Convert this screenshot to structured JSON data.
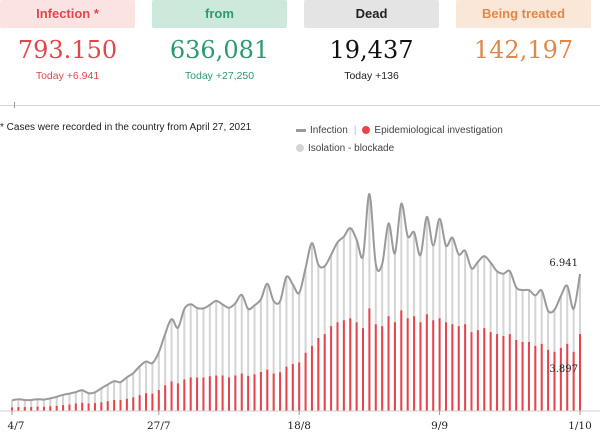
{
  "cards": [
    {
      "label": "Infection *",
      "value": "793.150",
      "today": "Today +6.941"
    },
    {
      "label": "from",
      "value": "636,081",
      "today": "Today +27,250"
    },
    {
      "label": "Dead",
      "value": "19,437",
      "today": "Today +136"
    },
    {
      "label": "Being treated",
      "value": "142,197",
      "today": ""
    }
  ],
  "footnote": "* Cases were recorded in the country from April 27, 2021",
  "legend": {
    "infection": "Infection",
    "epi": "Epidemiological investigation",
    "isolation": "Isolation - blockade"
  },
  "colors": {
    "infection": "#9a9a9a",
    "epi": "#e8434b",
    "isolation": "#d4d4d4"
  },
  "chart_data": {
    "type": "bar",
    "title": "",
    "xlabel": "",
    "ylabel": "",
    "x_tick_labels": [
      "4/7",
      "27/7",
      "18/8",
      "9/9",
      "1/10"
    ],
    "x_tick_indices": [
      0,
      23,
      45,
      67,
      89
    ],
    "last_values": {
      "infection": "6.941",
      "epi": "3.897"
    },
    "series": [
      {
        "name": "Infection",
        "values": [
          540,
          600,
          560,
          560,
          600,
          580,
          640,
          720,
          820,
          880,
          960,
          1050,
          900,
          950,
          1150,
          1340,
          1510,
          1460,
          1710,
          1920,
          2260,
          2510,
          2430,
          2970,
          3910,
          4660,
          4220,
          5170,
          5410,
          5220,
          5200,
          5380,
          5580,
          5400,
          5230,
          5460,
          5890,
          5180,
          5360,
          5660,
          6450,
          5570,
          5560,
          6800,
          6410,
          5980,
          7250,
          8510,
          7420,
          7340,
          7920,
          8550,
          8840,
          9270,
          8690,
          7850,
          11000,
          7450,
          7450,
          9510,
          7990,
          10510,
          8860,
          9060,
          7900,
          9840,
          8390,
          9750,
          8380,
          8790,
          7940,
          8120,
          7230,
          7560,
          7850,
          7520,
          7080,
          6960,
          7090,
          6270,
          6130,
          6130,
          5860,
          6110,
          5080,
          5130,
          5830,
          6350,
          5180,
          6941
        ]
      },
      {
        "name": "Epidemiological investigation",
        "values": [
          180,
          200,
          200,
          200,
          220,
          210,
          240,
          260,
          300,
          330,
          380,
          420,
          380,
          400,
          440,
          500,
          560,
          560,
          620,
          690,
          800,
          900,
          880,
          1060,
          1300,
          1500,
          1400,
          1600,
          1700,
          1700,
          1700,
          1760,
          1800,
          1800,
          1700,
          1800,
          1900,
          1780,
          1860,
          1980,
          2100,
          1900,
          1960,
          2250,
          2380,
          2460,
          2950,
          3300,
          3700,
          3900,
          4300,
          4500,
          4600,
          4700,
          4500,
          4200,
          5200,
          4400,
          4300,
          4800,
          4500,
          5100,
          4700,
          4800,
          4500,
          4900,
          4600,
          4700,
          4500,
          4400,
          4300,
          4400,
          4000,
          4100,
          4200,
          4000,
          3900,
          3800,
          3900,
          3600,
          3500,
          3500,
          3300,
          3400,
          3100,
          3000,
          3200,
          3400,
          3000,
          3897
        ]
      }
    ]
  }
}
